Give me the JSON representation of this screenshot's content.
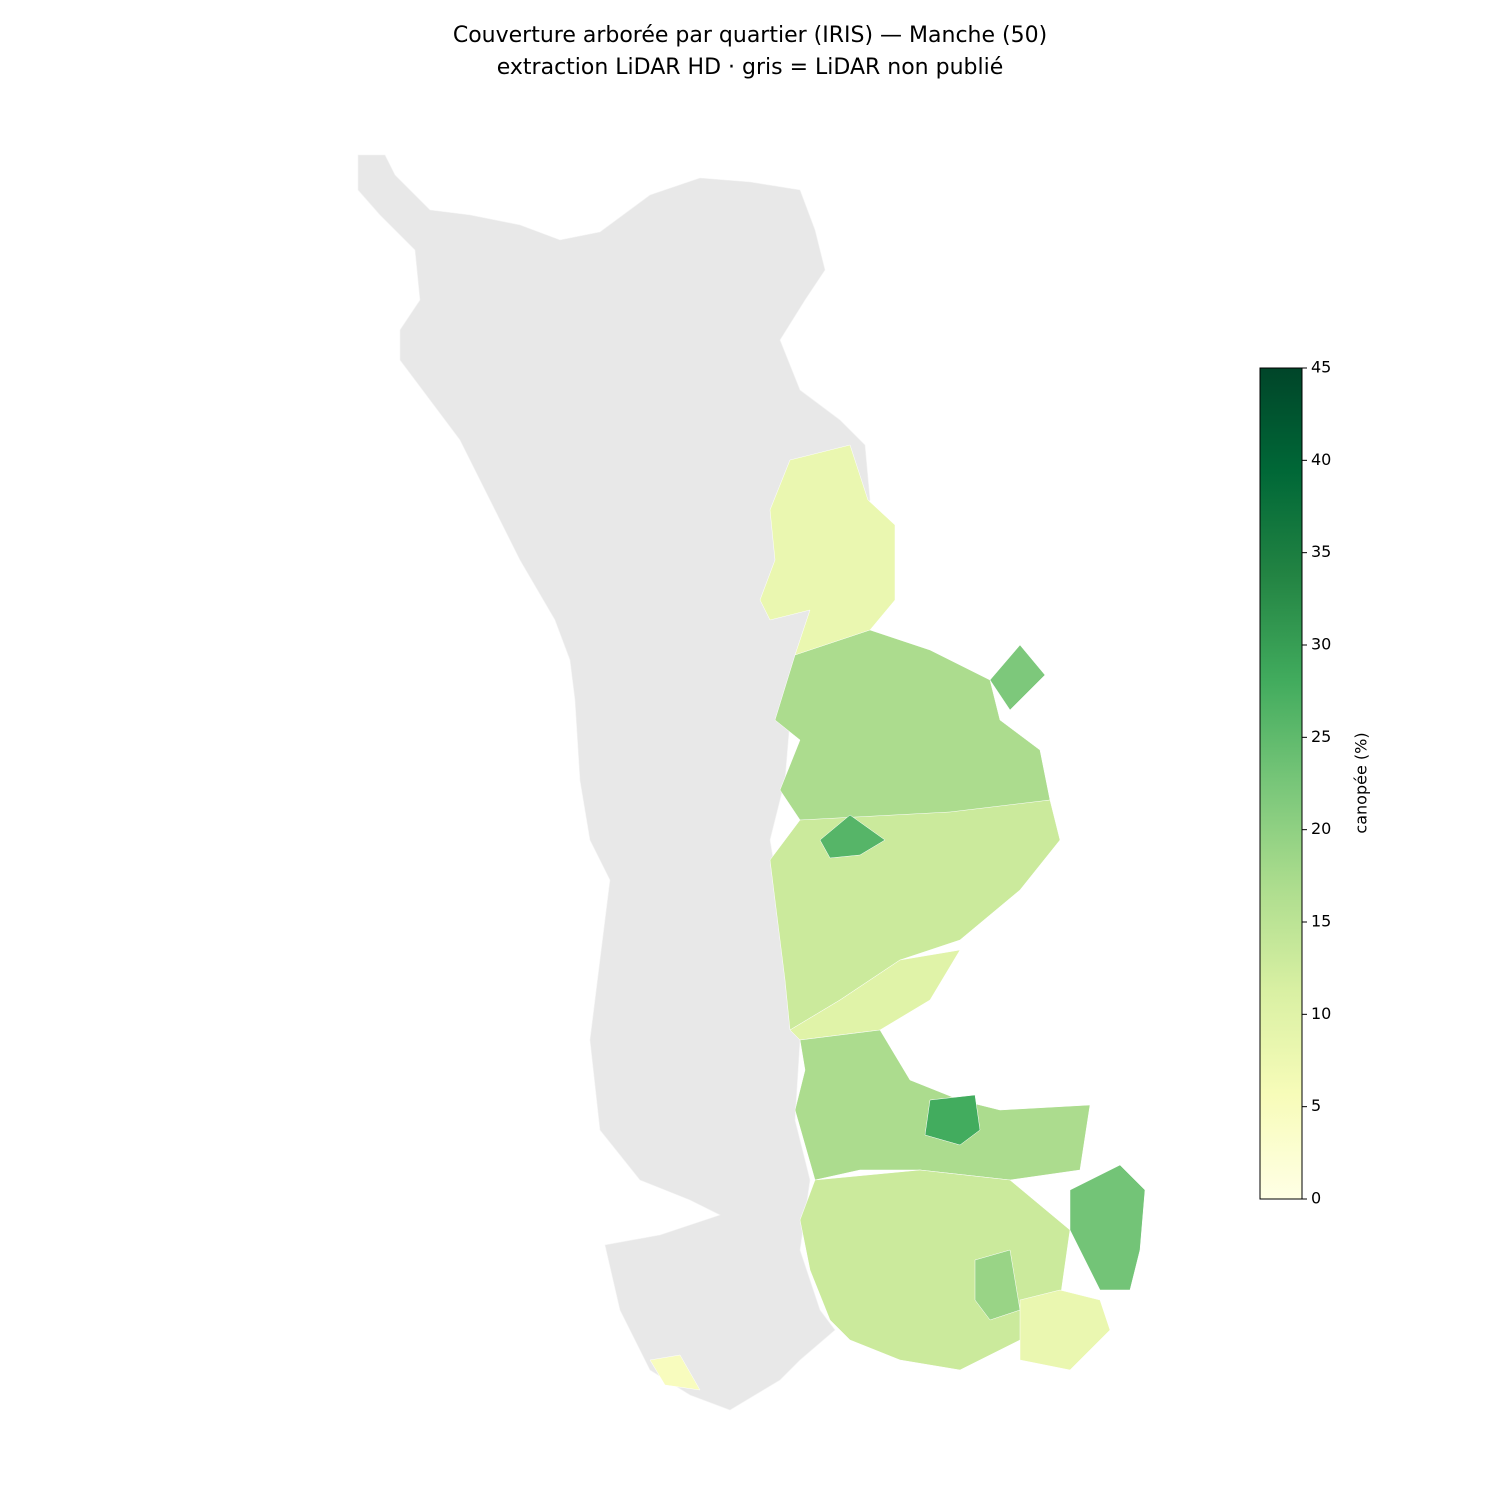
{
  "chart_data": {
    "type": "choropleth",
    "title": "Couverture arborée par quartier (IRIS) — Manche (50)",
    "subtitle": "extraction LiDAR HD · gris = LiDAR non publié",
    "colorbar_label": "canopée (%)",
    "clim": [
      0,
      45
    ],
    "cticks": [
      0,
      5,
      10,
      15,
      20,
      25,
      30,
      35,
      40,
      45
    ],
    "colormap": [
      "#ffffe5",
      "#f7fcb9",
      "#d9f0a3",
      "#addd8e",
      "#78c679",
      "#41ab5d",
      "#238443",
      "#006837",
      "#004529"
    ],
    "no_data_color": "#e8e8e8",
    "values": [
      8,
      17,
      22,
      13,
      26,
      10,
      17,
      28,
      13,
      23,
      19,
      8,
      5
    ]
  }
}
